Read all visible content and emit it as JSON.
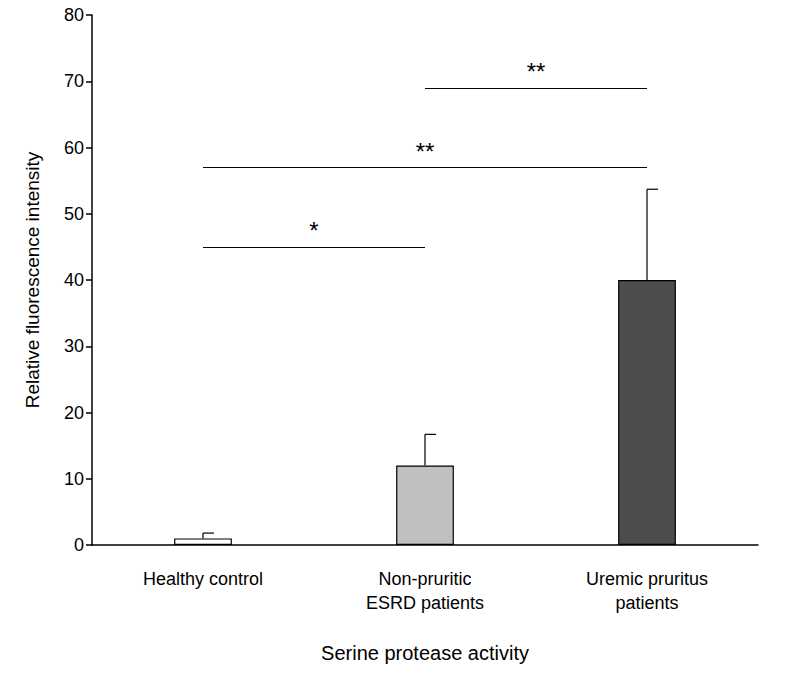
{
  "chart_data": {
    "type": "bar",
    "categories": [
      "Healthy control",
      "Non-pruritic\nESRD patients",
      "Uremic pruritus\npatients"
    ],
    "values": [
      1,
      12,
      40
    ],
    "errors": [
      0.8,
      4.7,
      13.7
    ],
    "colors": [
      "#ffffff",
      "#c0c0c0",
      "#4d4d4d"
    ],
    "x_label": "Serine protease activity",
    "y_label": "Relative fluorescence intensity",
    "ylim": [
      0,
      80
    ],
    "yticks": [
      0,
      10,
      20,
      30,
      40,
      50,
      60,
      70,
      80
    ],
    "grid": false,
    "annotations": [
      {
        "text": "*",
        "from": 0,
        "to": 1,
        "y": 45
      },
      {
        "text": "**",
        "from": 0,
        "to": 2,
        "y": 57
      },
      {
        "text": "**",
        "from": 1,
        "to": 2,
        "y": 69
      }
    ]
  }
}
